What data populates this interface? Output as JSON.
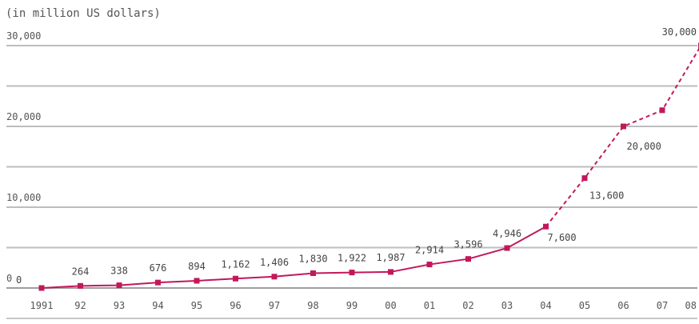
{
  "chart_data": {
    "type": "line",
    "unit_label": "(in million US dollars)",
    "categories": [
      "1991",
      "92",
      "93",
      "94",
      "95",
      "96",
      "97",
      "98",
      "99",
      "00",
      "01",
      "02",
      "03",
      "04",
      "05",
      "06",
      "07",
      "08"
    ],
    "series": [
      {
        "values": [
          0,
          264,
          338,
          676,
          894,
          1162,
          1406,
          1830,
          1922,
          1987,
          2914,
          3596,
          4946,
          7600,
          13600,
          20000,
          22000,
          30000
        ],
        "labels": [
          "0",
          "264",
          "338",
          "676",
          "894",
          "1,162",
          "1,406",
          "1,830",
          "1,922",
          "1,987",
          "2,914",
          "3,596",
          "4,946",
          "7,600",
          "13,600",
          "20,000",
          "",
          "30,000"
        ],
        "projected_from_index": 14,
        "color": "#c2185b"
      }
    ],
    "y_ticks": [
      {
        "value": 0,
        "label": "0"
      },
      {
        "value": 10000,
        "label": "10,000"
      },
      {
        "value": 20000,
        "label": "20,000"
      },
      {
        "value": 30000,
        "label": "30,000"
      }
    ],
    "y_gridlines": [
      0,
      5000,
      10000,
      15000,
      20000,
      25000,
      30000
    ],
    "ylim": [
      0,
      30000
    ],
    "grid": true,
    "legend": "none"
  }
}
